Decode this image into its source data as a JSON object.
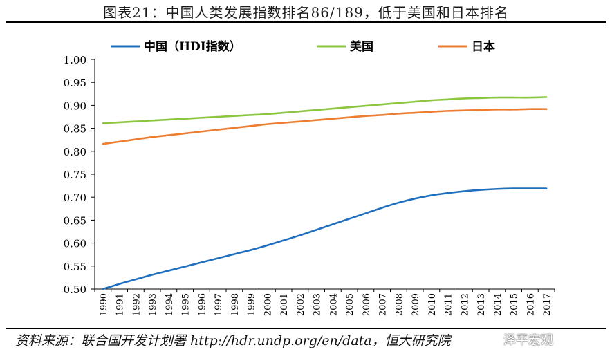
{
  "title": "图表21：中国人类发展指数排名86/189，低于美国和日本排名",
  "source": "资料来源：联合国开发计划署 http://hdr.undp.org/en/data，恒大研究院",
  "watermark": "泽平宏观",
  "colors": {
    "china": "#1f6fc0",
    "usa": "#8cc63f",
    "japan": "#ed7d31"
  },
  "chart_data": {
    "type": "line",
    "title": "",
    "xlabel": "",
    "ylabel": "",
    "x": [
      1990,
      1991,
      1992,
      1993,
      1994,
      1995,
      1996,
      1997,
      1998,
      1999,
      2000,
      2001,
      2002,
      2003,
      2004,
      2005,
      2006,
      2007,
      2008,
      2009,
      2010,
      2011,
      2012,
      2013,
      2014,
      2015,
      2016,
      2017
    ],
    "ylim": [
      0.5,
      1.0
    ],
    "yticks": [
      "1.00",
      "0.95",
      "0.90",
      "0.85",
      "0.80",
      "0.75",
      "0.70",
      "0.65",
      "0.60",
      "0.55",
      "0.50"
    ],
    "legend_position": "top",
    "grid": false,
    "series": [
      {
        "name": "中国（HDI指数）",
        "color": "#1f6fc0",
        "values": [
          0.5,
          0.511,
          0.521,
          0.531,
          0.54,
          0.549,
          0.558,
          0.567,
          0.576,
          0.585,
          0.595,
          0.606,
          0.617,
          0.629,
          0.641,
          0.653,
          0.665,
          0.677,
          0.688,
          0.697,
          0.704,
          0.709,
          0.713,
          0.716,
          0.718,
          0.719,
          0.719,
          0.719
        ]
      },
      {
        "name": "美国",
        "color": "#8cc63f",
        "values": [
          0.861,
          0.863,
          0.865,
          0.867,
          0.869,
          0.871,
          0.873,
          0.875,
          0.877,
          0.879,
          0.881,
          0.884,
          0.887,
          0.89,
          0.893,
          0.896,
          0.899,
          0.902,
          0.905,
          0.908,
          0.911,
          0.913,
          0.915,
          0.916,
          0.917,
          0.917,
          0.917,
          0.918
        ]
      },
      {
        "name": "日本",
        "color": "#ed7d31",
        "values": [
          0.816,
          0.821,
          0.826,
          0.831,
          0.835,
          0.839,
          0.843,
          0.847,
          0.851,
          0.855,
          0.859,
          0.862,
          0.865,
          0.868,
          0.871,
          0.874,
          0.877,
          0.879,
          0.882,
          0.884,
          0.886,
          0.888,
          0.889,
          0.89,
          0.891,
          0.891,
          0.892,
          0.892
        ]
      }
    ]
  }
}
